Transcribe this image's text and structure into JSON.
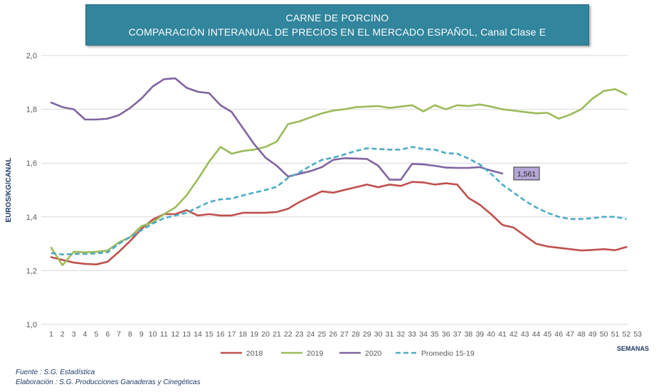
{
  "header": {
    "title_line1": "CARNE DE PORCINO",
    "title_line2": "COMPARACIÓN INTERANUAL DE PRECIOS EN EL MERCADO ESPAÑOL, Canal Clase E"
  },
  "footer": {
    "source": "Fuente :  S.G. Estadística",
    "elaboration": "Elaboración : S.G. Producciones Ganaderas y Cinegéticas"
  },
  "chart_data": {
    "type": "line",
    "title": "CARNE DE PORCINO",
    "subtitle": "COMPARACIÓN INTERANUAL DE PRECIOS EN EL MERCADO ESPAÑOL, Canal Clase E",
    "xlabel": "SEMANAS",
    "ylabel": "EUROS/KG/CANAL",
    "xlim": [
      1,
      53
    ],
    "ylim": [
      1.0,
      2.0
    ],
    "x_ticks": [
      1,
      2,
      3,
      4,
      5,
      6,
      7,
      8,
      9,
      10,
      11,
      12,
      13,
      14,
      15,
      16,
      17,
      18,
      19,
      20,
      21,
      22,
      23,
      24,
      25,
      26,
      27,
      28,
      29,
      30,
      31,
      32,
      33,
      34,
      35,
      36,
      37,
      38,
      39,
      40,
      41,
      42,
      43,
      44,
      45,
      46,
      47,
      48,
      49,
      50,
      51,
      52,
      53
    ],
    "y_ticks": [
      "1,0",
      "1,2",
      "1,4",
      "1,6",
      "1,8",
      "2,0"
    ],
    "grid": "horizontal",
    "legend_position": "bottom",
    "annotation": {
      "text": "1,561",
      "x": 41,
      "y": 1.561
    },
    "series": [
      {
        "name": "2018",
        "color": "#c0504d",
        "dash": false,
        "x": [
          1,
          2,
          3,
          4,
          5,
          6,
          7,
          8,
          9,
          10,
          11,
          12,
          13,
          14,
          15,
          16,
          17,
          18,
          19,
          20,
          21,
          22,
          23,
          24,
          25,
          26,
          27,
          28,
          29,
          30,
          31,
          32,
          33,
          34,
          35,
          36,
          37,
          38,
          39,
          40,
          41,
          42,
          43,
          44,
          45,
          46,
          47,
          48,
          49,
          50,
          51,
          52
        ],
        "values": [
          1.25,
          1.24,
          1.23,
          1.225,
          1.223,
          1.233,
          1.27,
          1.31,
          1.355,
          1.39,
          1.41,
          1.41,
          1.425,
          1.405,
          1.41,
          1.405,
          1.405,
          1.415,
          1.415,
          1.415,
          1.418,
          1.43,
          1.455,
          1.475,
          1.495,
          1.49,
          1.5,
          1.51,
          1.52,
          1.51,
          1.52,
          1.515,
          1.53,
          1.528,
          1.52,
          1.525,
          1.52,
          1.47,
          1.445,
          1.41,
          1.37,
          1.36,
          1.33,
          1.3,
          1.29,
          1.285,
          1.28,
          1.275,
          1.277,
          1.28,
          1.276,
          1.288
        ]
      },
      {
        "name": "2019",
        "color": "#9bbb59",
        "dash": false,
        "x": [
          1,
          2,
          3,
          4,
          5,
          6,
          7,
          8,
          9,
          10,
          11,
          12,
          13,
          14,
          15,
          16,
          17,
          18,
          19,
          20,
          21,
          22,
          23,
          24,
          25,
          26,
          27,
          28,
          29,
          30,
          31,
          32,
          33,
          34,
          35,
          36,
          37,
          38,
          39,
          40,
          41,
          42,
          43,
          44,
          45,
          46,
          47,
          48,
          49,
          50,
          51,
          52
        ],
        "values": [
          1.285,
          1.22,
          1.27,
          1.268,
          1.27,
          1.275,
          1.305,
          1.325,
          1.365,
          1.38,
          1.41,
          1.435,
          1.48,
          1.54,
          1.605,
          1.66,
          1.635,
          1.645,
          1.65,
          1.66,
          1.68,
          1.745,
          1.755,
          1.77,
          1.785,
          1.795,
          1.8,
          1.808,
          1.81,
          1.812,
          1.805,
          1.81,
          1.815,
          1.792,
          1.815,
          1.8,
          1.815,
          1.812,
          1.818,
          1.81,
          1.8,
          1.795,
          1.79,
          1.785,
          1.787,
          1.765,
          1.78,
          1.8,
          1.84,
          1.868,
          1.875,
          1.855
        ]
      },
      {
        "name": "2020",
        "color": "#8064a2",
        "dash": false,
        "x": [
          1,
          2,
          3,
          4,
          5,
          6,
          7,
          8,
          9,
          10,
          11,
          12,
          13,
          14,
          15,
          16,
          17,
          18,
          19,
          20,
          21,
          22,
          23,
          24,
          25,
          26,
          27,
          28,
          29,
          30,
          31,
          32,
          33,
          34,
          35,
          36,
          37,
          38,
          39,
          40,
          41
        ],
        "values": [
          1.825,
          1.808,
          1.8,
          1.762,
          1.762,
          1.765,
          1.778,
          1.805,
          1.84,
          1.885,
          1.912,
          1.915,
          1.88,
          1.865,
          1.86,
          1.815,
          1.79,
          1.73,
          1.67,
          1.62,
          1.59,
          1.55,
          1.56,
          1.57,
          1.585,
          1.612,
          1.618,
          1.617,
          1.615,
          1.59,
          1.538,
          1.538,
          1.597,
          1.595,
          1.59,
          1.583,
          1.582,
          1.582,
          1.585,
          1.572,
          1.561
        ]
      },
      {
        "name": "Promedio 15-19",
        "color": "#4bacc6",
        "dash": true,
        "x": [
          1,
          2,
          3,
          4,
          5,
          6,
          7,
          8,
          9,
          10,
          11,
          12,
          13,
          14,
          15,
          16,
          17,
          18,
          19,
          20,
          21,
          22,
          23,
          24,
          25,
          26,
          27,
          28,
          29,
          30,
          31,
          32,
          33,
          34,
          35,
          36,
          37,
          38,
          39,
          40,
          41,
          42,
          43,
          44,
          45,
          46,
          47,
          48,
          49,
          50,
          51,
          52
        ],
        "values": [
          1.265,
          1.26,
          1.262,
          1.262,
          1.264,
          1.268,
          1.3,
          1.325,
          1.35,
          1.375,
          1.395,
          1.405,
          1.415,
          1.435,
          1.455,
          1.465,
          1.468,
          1.48,
          1.49,
          1.5,
          1.512,
          1.545,
          1.565,
          1.59,
          1.612,
          1.62,
          1.632,
          1.645,
          1.655,
          1.652,
          1.65,
          1.65,
          1.66,
          1.652,
          1.65,
          1.637,
          1.635,
          1.617,
          1.595,
          1.56,
          1.52,
          1.49,
          1.46,
          1.435,
          1.415,
          1.4,
          1.392,
          1.392,
          1.395,
          1.4,
          1.4,
          1.392
        ]
      }
    ]
  }
}
